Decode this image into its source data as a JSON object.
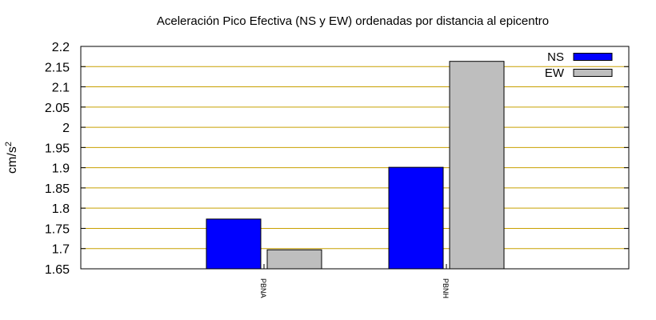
{
  "chart_data": {
    "type": "bar",
    "title": "Aceleración Pico Efectiva (NS y EW) ordenadas por distancia al epicentro",
    "ylabel_base": "cm/s",
    "ylabel_exp": "2",
    "xlabel": "",
    "categories": [
      "PBNA",
      "PBNH"
    ],
    "series": [
      {
        "name": "NS",
        "values": [
          1.773,
          1.901
        ],
        "color": "#0000ff"
      },
      {
        "name": "EW",
        "values": [
          1.697,
          2.163
        ],
        "color": "#bebebe"
      }
    ],
    "ylim": [
      1.65,
      2.2
    ],
    "yticks": [
      "1.65",
      "1.7",
      "1.75",
      "1.8",
      "1.85",
      "1.9",
      "1.95",
      "2",
      "2.05",
      "2.1",
      "2.15",
      "2.2"
    ],
    "grid": true,
    "grid_color": "#c8a000",
    "legend": "top-right"
  }
}
